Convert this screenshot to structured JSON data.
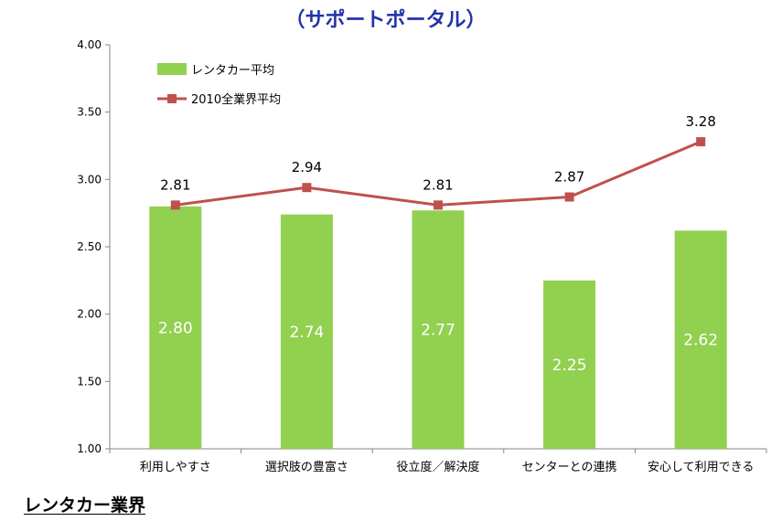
{
  "title": "（サポートポータル）",
  "footer_label": "レンタカー業界",
  "colors": {
    "bar": "#92d050",
    "line": "#c0504d",
    "axis": "#868686"
  },
  "chart_data": {
    "type": "bar",
    "categories": [
      "利用しやすさ",
      "選択肢の豊富さ",
      "役立度／解決度",
      "センターとの連携",
      "安心して利用できる"
    ],
    "series": [
      {
        "name": "レンタカー平均",
        "type": "bar",
        "values": [
          2.8,
          2.74,
          2.77,
          2.25,
          2.62
        ]
      },
      {
        "name": "2010全業界平均",
        "type": "line",
        "values": [
          2.81,
          2.94,
          2.81,
          2.87,
          3.28
        ]
      }
    ],
    "bar_labels": [
      "2.80",
      "2.74",
      "2.77",
      "2.25",
      "2.62"
    ],
    "line_labels": [
      "2.81",
      "2.94",
      "2.81",
      "2.87",
      "3.28"
    ],
    "yticks": [
      "4.00",
      "3.50",
      "3.00",
      "2.50",
      "2.00",
      "1.50",
      "1.00"
    ],
    "ylim": [
      1.0,
      4.0
    ],
    "legend_position": "top-left",
    "grid": false
  }
}
